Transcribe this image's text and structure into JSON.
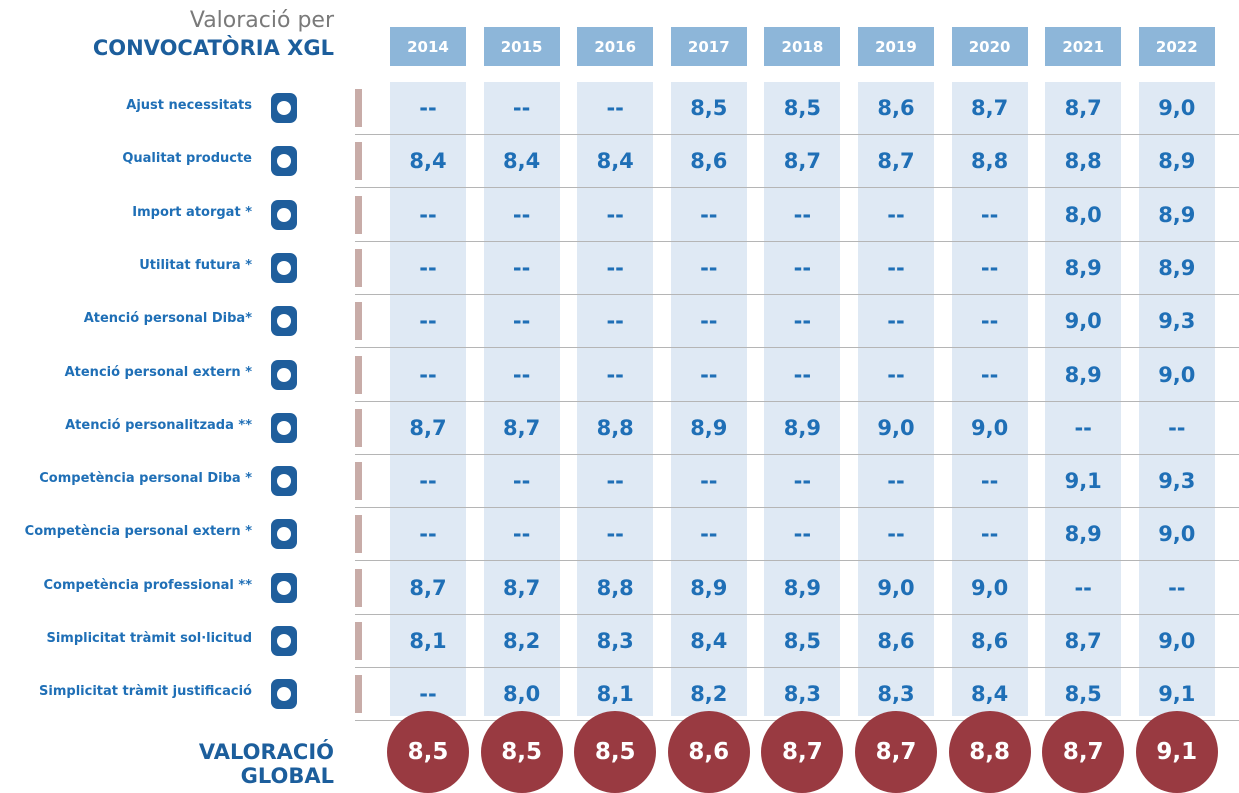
{
  "header": {
    "title_line1": "Valoració per",
    "title_line2": "CONVOCATÒRIA XGL"
  },
  "years": [
    "2014",
    "2015",
    "2016",
    "2017",
    "2018",
    "2019",
    "2020",
    "2021",
    "2022"
  ],
  "rows": [
    {
      "label": "Ajust necessitats",
      "values": [
        "--",
        "--",
        "--",
        "8,5",
        "8,5",
        "8,6",
        "8,7",
        "8,7",
        "9,0"
      ]
    },
    {
      "label": "Qualitat producte",
      "values": [
        "8,4",
        "8,4",
        "8,4",
        "8,6",
        "8,7",
        "8,7",
        "8,8",
        "8,8",
        "8,9"
      ]
    },
    {
      "label": "Import atorgat *",
      "values": [
        "--",
        "--",
        "--",
        "--",
        "--",
        "--",
        "--",
        "8,0",
        "8,9"
      ]
    },
    {
      "label": "Utilitat futura *",
      "values": [
        "--",
        "--",
        "--",
        "--",
        "--",
        "--",
        "--",
        "8,9",
        "8,9"
      ]
    },
    {
      "label": "Atenció personal Diba*",
      "values": [
        "--",
        "--",
        "--",
        "--",
        "--",
        "--",
        "--",
        "9,0",
        "9,3"
      ]
    },
    {
      "label": "Atenció personal extern *",
      "values": [
        "--",
        "--",
        "--",
        "--",
        "--",
        "--",
        "--",
        "8,9",
        "9,0"
      ]
    },
    {
      "label": "Atenció personalitzada **",
      "values": [
        "8,7",
        "8,7",
        "8,8",
        "8,9",
        "8,9",
        "9,0",
        "9,0",
        "--",
        "--"
      ]
    },
    {
      "label": "Competència personal Diba *",
      "values": [
        "--",
        "--",
        "--",
        "--",
        "--",
        "--",
        "--",
        "9,1",
        "9,3"
      ]
    },
    {
      "label": "Competència personal extern *",
      "values": [
        "--",
        "--",
        "--",
        "--",
        "--",
        "--",
        "--",
        "8,9",
        "9,0"
      ]
    },
    {
      "label": "Competència professional **",
      "values": [
        "8,7",
        "8,7",
        "8,8",
        "8,9",
        "8,9",
        "9,0",
        "9,0",
        "--",
        "--"
      ]
    },
    {
      "label": "Simplicitat tràmit sol·licitud",
      "values": [
        "8,1",
        "8,2",
        "8,3",
        "8,4",
        "8,5",
        "8,6",
        "8,6",
        "8,7",
        "9,0"
      ]
    },
    {
      "label": "Simplicitat tràmit justificació",
      "values": [
        "--",
        "8,0",
        "8,1",
        "8,2",
        "8,3",
        "8,3",
        "8,4",
        "8,5",
        "9,1"
      ]
    }
  ],
  "global": {
    "label_line1": "VALORACIÓ",
    "label_line2": "GLOBAL",
    "values": [
      "8,5",
      "8,5",
      "8,5",
      "8,6",
      "8,7",
      "8,7",
      "8,8",
      "8,7",
      "9,1"
    ]
  }
}
